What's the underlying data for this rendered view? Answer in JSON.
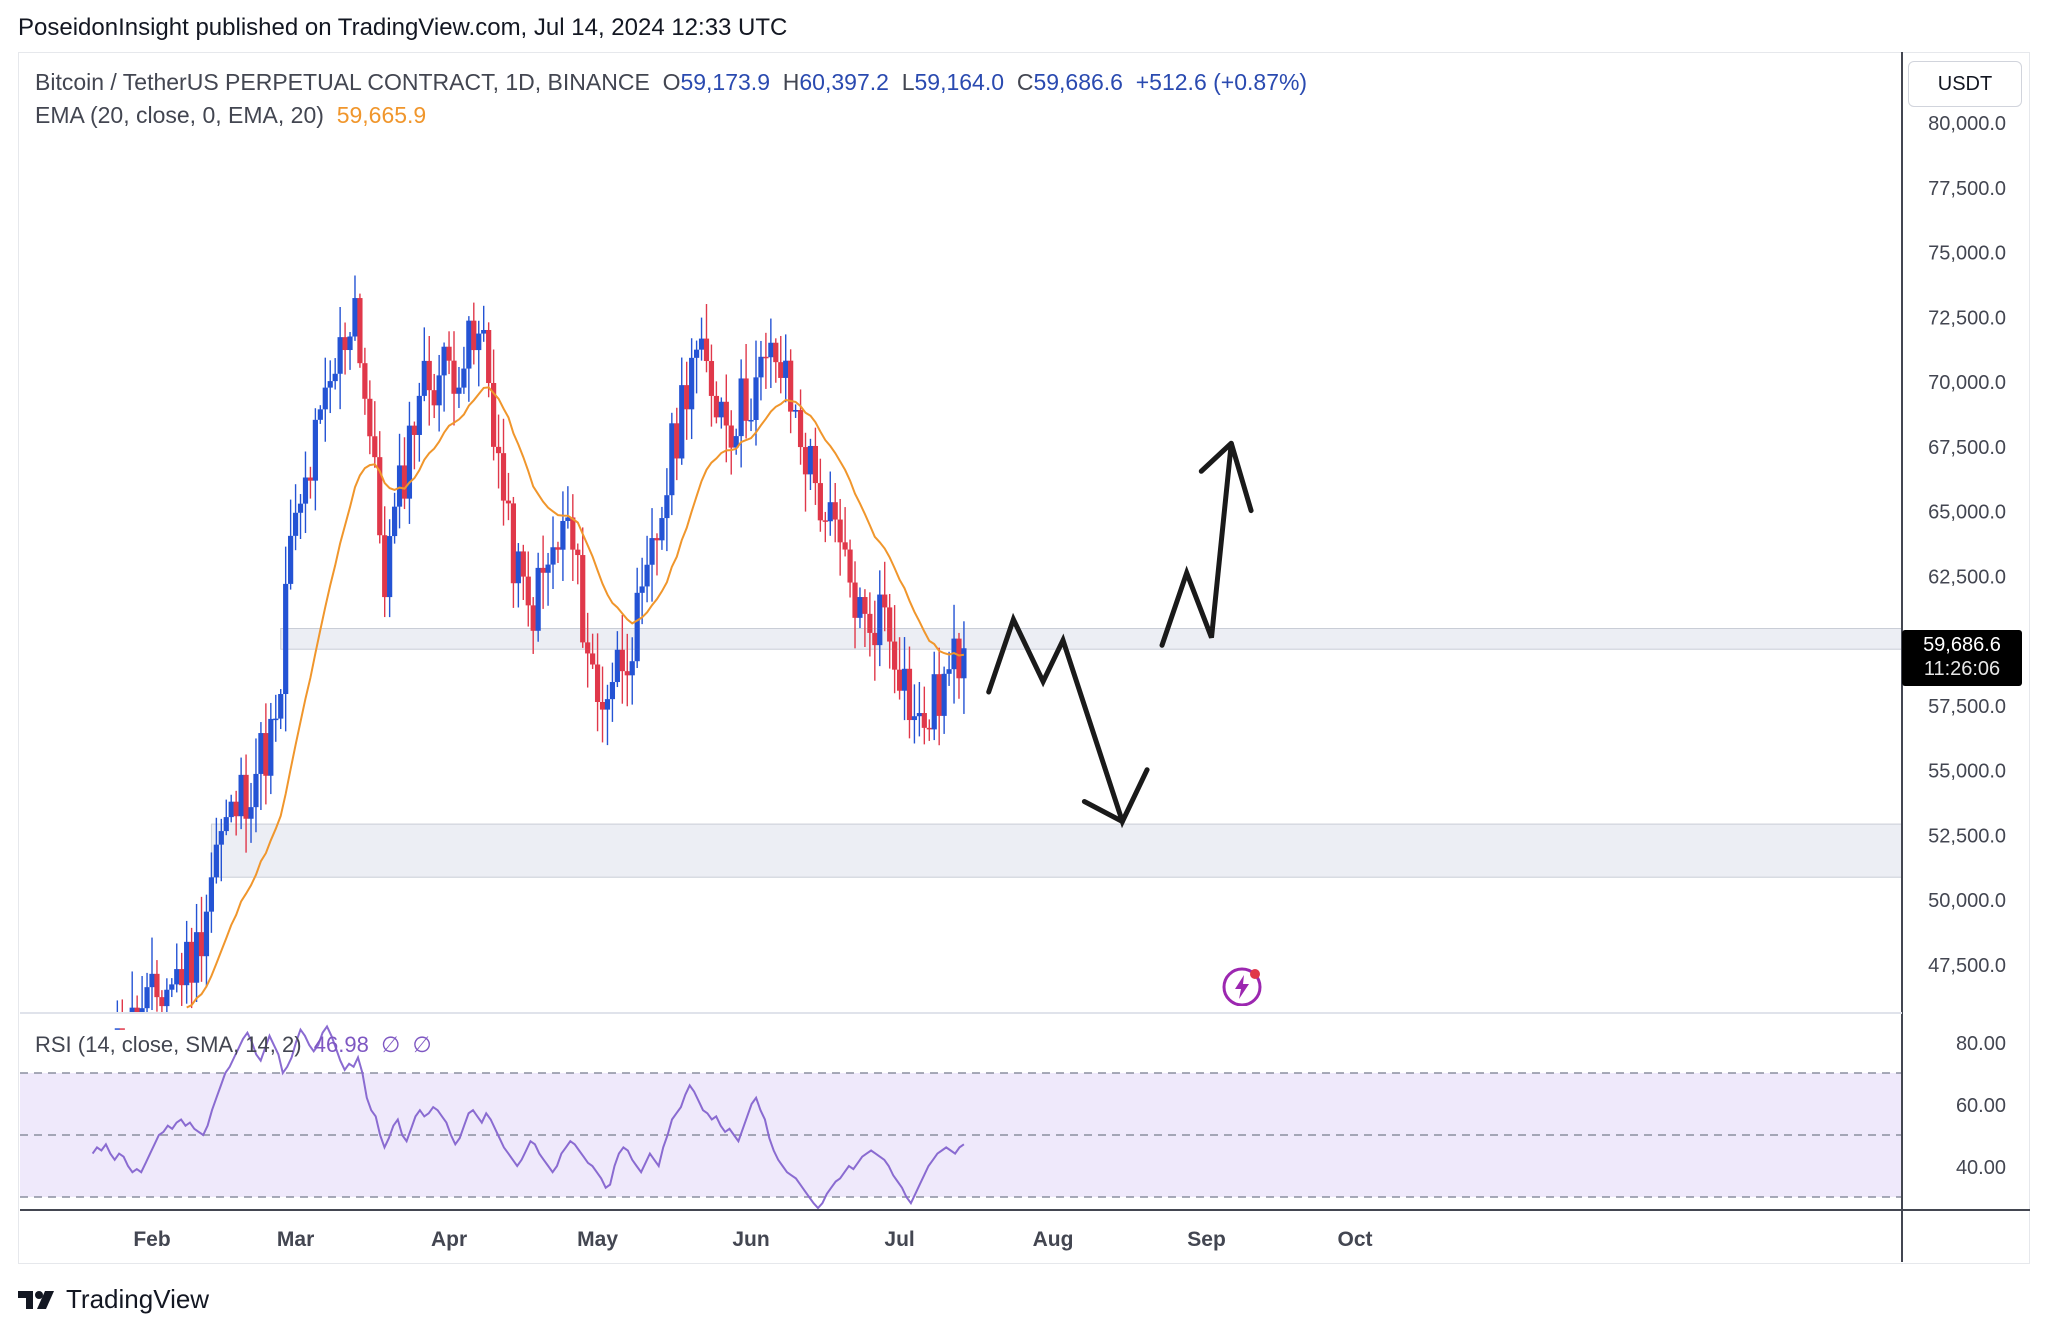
{
  "publish_line": "PoseidonInsight published on TradingView.com, Jul 14, 2024 12:33 UTC",
  "legend": {
    "symbol": "Bitcoin / TetherUS PERPETUAL CONTRACT, 1D, BINANCE",
    "open_label": "O",
    "open": "59,173.9",
    "high_label": "H",
    "high": "60,397.2",
    "low_label": "L",
    "low": "59,164.0",
    "close_label": "C",
    "close": "59,686.6",
    "change": "+512.6 (+0.87%)",
    "ema_label": "EMA (20, close, 0, EMA, 20)",
    "ema_value": "59,665.9"
  },
  "rsi_legend": {
    "label": "RSI (14, close, SMA, 14, 2)",
    "value": "46.98",
    "na1": "∅",
    "na2": "∅"
  },
  "currency": "USDT",
  "price_tag": {
    "price": "59,686.6",
    "countdown": "11:26:06"
  },
  "footer": {
    "brand": "TradingView",
    "logo_icon": "tradingview-logo-icon"
  },
  "colors": {
    "up": "#2453d4",
    "down": "#e0384a",
    "ema": "#f0962c",
    "rsi": "#8a6bd1",
    "zone": "#eceef4",
    "arrow": "#1a1a1a"
  },
  "chart_data": [
    {
      "type": "candlestick",
      "title": "Bitcoin / TetherUS PERPETUAL CONTRACT, 1D, BINANCE",
      "y_ticks": [
        "80,000.0",
        "77,500.0",
        "75,000.0",
        "72,500.0",
        "70,000.0",
        "67,500.0",
        "65,000.0",
        "62,500.0",
        "57,500.0",
        "55,000.0",
        "52,500.0",
        "50,000.0",
        "47,500.0"
      ],
      "x_ticks": [
        "Feb",
        "Mar",
        "Apr",
        "May",
        "Jun",
        "Jul",
        "Aug",
        "Sep",
        "Oct"
      ],
      "ylim": [
        45800,
        81000
      ],
      "candle_markers": [
        {
          "date": "2024-01-20",
          "close": 43200
        },
        {
          "date": "2024-02-10",
          "close": 48000
        },
        {
          "date": "2024-02-14",
          "close": 52000
        },
        {
          "date": "2024-02-27",
          "close": 57000
        },
        {
          "date": "2024-02-28",
          "close": 62500
        },
        {
          "date": "2024-03-05",
          "close": 67500
        },
        {
          "date": "2024-03-13",
          "close": 73200
        },
        {
          "date": "2024-03-19",
          "close": 62500
        },
        {
          "date": "2024-03-26",
          "close": 69800
        },
        {
          "date": "2024-04-08",
          "close": 71500
        },
        {
          "date": "2024-04-13",
          "close": 64000
        },
        {
          "date": "2024-04-17",
          "close": 61000
        },
        {
          "date": "2024-04-25",
          "close": 64500
        },
        {
          "date": "2024-05-01",
          "close": 57500
        },
        {
          "date": "2024-05-10",
          "close": 61000
        },
        {
          "date": "2024-05-20",
          "close": 71200
        },
        {
          "date": "2024-05-28",
          "close": 68500
        },
        {
          "date": "2024-06-06",
          "close": 71000
        },
        {
          "date": "2024-06-14",
          "close": 66000
        },
        {
          "date": "2024-06-24",
          "close": 60500
        },
        {
          "date": "2024-06-28",
          "close": 61300
        },
        {
          "date": "2024-07-04",
          "close": 57000
        },
        {
          "date": "2024-07-05",
          "close": 56500
        },
        {
          "date": "2024-07-14",
          "close": 59686.6
        }
      ],
      "ema": {
        "name": "EMA (20, close, 0, EMA, 20)",
        "last": 59665.9
      },
      "zones": [
        {
          "from": 59650,
          "to": 60450
        },
        {
          "from": 50850,
          "to": 52900
        }
      ],
      "projection_path": [
        {
          "date": "2024-07-19",
          "price": 58000
        },
        {
          "date": "2024-07-24",
          "price": 60800
        },
        {
          "date": "2024-07-30",
          "price": 58400
        },
        {
          "date": "2024-08-03",
          "price": 60000
        },
        {
          "date": "2024-08-15",
          "price": 53000
        },
        {
          "date": "2024-08-20",
          "price": 55000
        }
      ],
      "projection_path_2": [
        {
          "date": "2024-08-23",
          "price": 59800
        },
        {
          "date": "2024-08-28",
          "price": 62600
        },
        {
          "date": "2024-09-02",
          "price": 60100
        },
        {
          "date": "2024-09-06",
          "price": 67600
        },
        {
          "date": "2024-09-10",
          "price": 65000
        }
      ]
    },
    {
      "type": "line",
      "title": "RSI (14, close, SMA, 14, 2)",
      "y_ticks": [
        "80.00",
        "60.00",
        "40.00"
      ],
      "ylim": [
        25,
        88
      ],
      "bands": [
        70,
        50,
        30
      ],
      "values": [
        44,
        46,
        45,
        47,
        44,
        42,
        44,
        43,
        40,
        38,
        39,
        38,
        41,
        44,
        47,
        50,
        51,
        53,
        52,
        54,
        55,
        53,
        54,
        52,
        51,
        50,
        53,
        58,
        62,
        66,
        70,
        72,
        75,
        78,
        81,
        83,
        80,
        76,
        74,
        78,
        82,
        79,
        76,
        70,
        72,
        75,
        80,
        84,
        82,
        79,
        77,
        79,
        83,
        85,
        82,
        78,
        74,
        71,
        73,
        72,
        75,
        70,
        62,
        58,
        56,
        50,
        46,
        49,
        53,
        55,
        50,
        48,
        52,
        56,
        58,
        56,
        57,
        59,
        58,
        56,
        54,
        50,
        47,
        49,
        53,
        57,
        58,
        56,
        54,
        57,
        55,
        52,
        49,
        46,
        44,
        42,
        40,
        42,
        45,
        48,
        47,
        44,
        42,
        40,
        38,
        40,
        44,
        46,
        48,
        47,
        45,
        43,
        41,
        40,
        38,
        36,
        33,
        34,
        40,
        44,
        46,
        45,
        42,
        40,
        38,
        41,
        44,
        42,
        40,
        46,
        50,
        55,
        57,
        59,
        63,
        66,
        64,
        61,
        58,
        57,
        55,
        56,
        53,
        51,
        52,
        50,
        48,
        52,
        56,
        60,
        62,
        58,
        55,
        49,
        45,
        42,
        40,
        38,
        37,
        36,
        34,
        32,
        30,
        28,
        26,
        28,
        31,
        33,
        35,
        36,
        38,
        40,
        39,
        41,
        43,
        44,
        45,
        44,
        43,
        42,
        40,
        37,
        35,
        33,
        30,
        28,
        31,
        34,
        37,
        40,
        42,
        44,
        45,
        46,
        45,
        44,
        46,
        47
      ]
    }
  ]
}
